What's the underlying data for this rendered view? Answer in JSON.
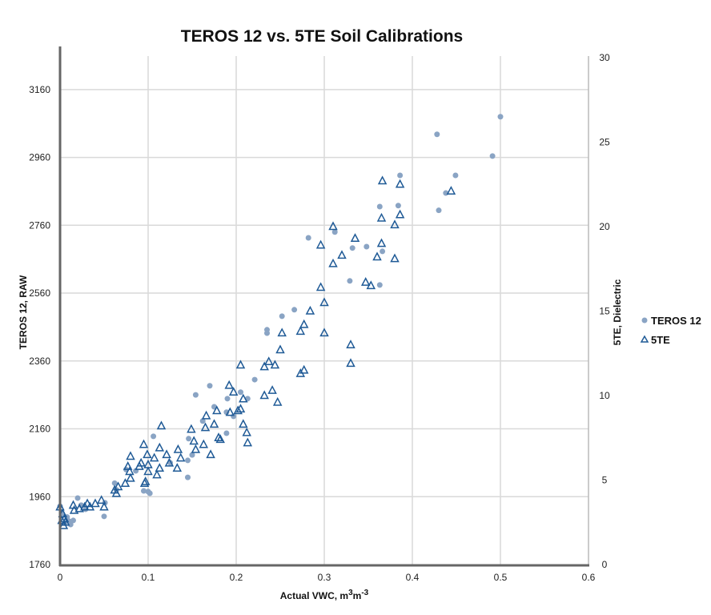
{
  "chart_data": {
    "type": "scatter",
    "title": "TEROS 12 vs. 5TE Soil Calibrations",
    "xlabel": "Actual VWC, m",
    "xlabel_sup1": "3",
    "xlabel_mid": "m",
    "xlabel_sup2": "-3",
    "ylabel": "TEROS 12, RAW",
    "y2label": "5TE, Dielectric",
    "xlim": [
      0,
      0.6
    ],
    "ylim": [
      1760,
      3254
    ],
    "y2lim": [
      0,
      30
    ],
    "xticks": [
      "0",
      "0.1",
      "0.2",
      "0.3",
      "0.4",
      "0.5",
      "0.6"
    ],
    "xtick_values": [
      0,
      0.1,
      0.2,
      0.3,
      0.4,
      0.5,
      0.6
    ],
    "yticks": [
      "1760",
      "1960",
      "2160",
      "2360",
      "2560",
      "2760",
      "2960",
      "3160"
    ],
    "ytick_values": [
      1760,
      1960,
      2160,
      2360,
      2560,
      2760,
      2960,
      3160
    ],
    "y2ticks": [
      "0",
      "5",
      "10",
      "15",
      "20",
      "25",
      "30"
    ],
    "y2tick_values": [
      0,
      5,
      10,
      15,
      20,
      25,
      30
    ],
    "grid": true,
    "legend_position": "right",
    "series": [
      {
        "name": "TEROS 12",
        "axis": "left",
        "marker": "circle",
        "color": "#8aa4c4",
        "points": [
          [
            0.5,
            3080
          ],
          [
            0.428,
            3028
          ],
          [
            0.491,
            2964
          ],
          [
            0.449,
            2907
          ],
          [
            0.386,
            2907
          ],
          [
            0.438,
            2855
          ],
          [
            0.384,
            2818
          ],
          [
            0.363,
            2815
          ],
          [
            0.43,
            2804
          ],
          [
            0.282,
            2723
          ],
          [
            0.312,
            2740
          ],
          [
            0.332,
            2693
          ],
          [
            0.348,
            2697
          ],
          [
            0.366,
            2683
          ],
          [
            0.329,
            2596
          ],
          [
            0.363,
            2584
          ],
          [
            0.266,
            2511
          ],
          [
            0.252,
            2492
          ],
          [
            0.235,
            2452
          ],
          [
            0.235,
            2442
          ],
          [
            0.221,
            2305
          ],
          [
            0.205,
            2268
          ],
          [
            0.17,
            2287
          ],
          [
            0.154,
            2260
          ],
          [
            0.19,
            2249
          ],
          [
            0.213,
            2249
          ],
          [
            0.175,
            2225
          ],
          [
            0.189,
            2209
          ],
          [
            0.197,
            2197
          ],
          [
            0.189,
            2147
          ],
          [
            0.162,
            2183
          ],
          [
            0.146,
            2131
          ],
          [
            0.145,
            2067
          ],
          [
            0.15,
            2083
          ],
          [
            0.125,
            2060
          ],
          [
            0.145,
            2017
          ],
          [
            0.106,
            2138
          ],
          [
            0.095,
            1977
          ],
          [
            0.1,
            1975
          ],
          [
            0.102,
            1970
          ],
          [
            0.086,
            2036
          ],
          [
            0.075,
            2040
          ],
          [
            0.062,
            2000
          ],
          [
            0.064,
            1980
          ],
          [
            0.051,
            1942
          ],
          [
            0.05,
            1902
          ],
          [
            0.02,
            1956
          ],
          [
            0.029,
            1923
          ],
          [
            0.024,
            1935
          ],
          [
            0.015,
            1890
          ],
          [
            0.01,
            1888
          ],
          [
            0.005,
            1882
          ],
          [
            0.012,
            1878
          ],
          [
            0,
            1932
          ],
          [
            0.002,
            1912
          ],
          [
            0.008,
            1900
          ]
        ]
      },
      {
        "name": "5TE",
        "axis": "right",
        "marker": "triangle",
        "color": "#1f5a96",
        "points": [
          [
            0.366,
            22.7
          ],
          [
            0.386,
            22.5
          ],
          [
            0.444,
            22.1
          ],
          [
            0.365,
            20.5
          ],
          [
            0.386,
            20.7
          ],
          [
            0.38,
            20.1
          ],
          [
            0.31,
            20.0
          ],
          [
            0.335,
            19.3
          ],
          [
            0.296,
            18.9
          ],
          [
            0.365,
            19.0
          ],
          [
            0.32,
            18.3
          ],
          [
            0.36,
            18.2
          ],
          [
            0.31,
            17.8
          ],
          [
            0.38,
            18.1
          ],
          [
            0.347,
            16.7
          ],
          [
            0.353,
            16.5
          ],
          [
            0.296,
            16.4
          ],
          [
            0.3,
            15.5
          ],
          [
            0.284,
            15.0
          ],
          [
            0.277,
            14.2
          ],
          [
            0.252,
            13.7
          ],
          [
            0.273,
            13.8
          ],
          [
            0.3,
            13.7
          ],
          [
            0.33,
            13.0
          ],
          [
            0.25,
            12.7
          ],
          [
            0.237,
            12.0
          ],
          [
            0.244,
            11.8
          ],
          [
            0.232,
            11.7
          ],
          [
            0.205,
            11.8
          ],
          [
            0.33,
            11.9
          ],
          [
            0.277,
            11.5
          ],
          [
            0.273,
            11.3
          ],
          [
            0.241,
            10.3
          ],
          [
            0.232,
            10.0
          ],
          [
            0.247,
            9.6
          ],
          [
            0.192,
            10.6
          ],
          [
            0.197,
            10.2
          ],
          [
            0.208,
            9.8
          ],
          [
            0.193,
            9.0
          ],
          [
            0.202,
            9.1
          ],
          [
            0.178,
            9.1
          ],
          [
            0.205,
            9.2
          ],
          [
            0.166,
            8.8
          ],
          [
            0.175,
            8.3
          ],
          [
            0.149,
            8.0
          ],
          [
            0.165,
            8.1
          ],
          [
            0.115,
            8.2
          ],
          [
            0.208,
            8.3
          ],
          [
            0.212,
            7.8
          ],
          [
            0.163,
            7.1
          ],
          [
            0.18,
            7.5
          ],
          [
            0.182,
            7.4
          ],
          [
            0.213,
            7.2
          ],
          [
            0.171,
            6.5
          ],
          [
            0.152,
            7.3
          ],
          [
            0.154,
            6.8
          ],
          [
            0.134,
            6.8
          ],
          [
            0.113,
            6.9
          ],
          [
            0.095,
            7.1
          ],
          [
            0.08,
            6.4
          ],
          [
            0.092,
            6.0
          ],
          [
            0.099,
            6.5
          ],
          [
            0.121,
            6.5
          ],
          [
            0.137,
            6.3
          ],
          [
            0.107,
            6.3
          ],
          [
            0.124,
            6.0
          ],
          [
            0.113,
            5.7
          ],
          [
            0.1,
            5.9
          ],
          [
            0.09,
            5.8
          ],
          [
            0.077,
            5.8
          ],
          [
            0.079,
            5.5
          ],
          [
            0.1,
            5.5
          ],
          [
            0.133,
            5.7
          ],
          [
            0.11,
            5.3
          ],
          [
            0.08,
            5.1
          ],
          [
            0.074,
            4.8
          ],
          [
            0.097,
            4.9
          ],
          [
            0.096,
            4.8
          ],
          [
            0.066,
            4.6
          ],
          [
            0.062,
            4.4
          ],
          [
            0.064,
            4.2
          ],
          [
            0.047,
            3.8
          ],
          [
            0.04,
            3.6
          ],
          [
            0.031,
            3.6
          ],
          [
            0.034,
            3.4
          ],
          [
            0.05,
            3.4
          ],
          [
            0.022,
            3.3
          ],
          [
            0.028,
            3.4
          ],
          [
            0.016,
            3.2
          ],
          [
            0,
            3.4
          ],
          [
            0.003,
            3.0
          ],
          [
            0.005,
            2.7
          ],
          [
            0.006,
            2.5
          ],
          [
            0.004,
            2.3
          ],
          [
            0.002,
            2.6
          ],
          [
            0.015,
            3.5
          ]
        ]
      }
    ]
  }
}
